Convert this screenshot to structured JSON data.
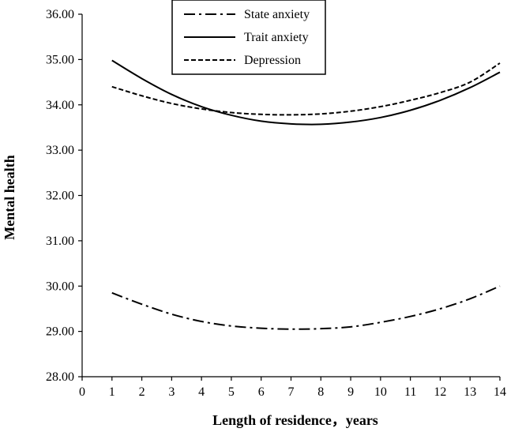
{
  "chart_data": {
    "type": "line",
    "title": "",
    "xlabel": "Length of residence，years",
    "ylabel": "Mental  health",
    "xlim": [
      0,
      14
    ],
    "ylim": [
      28,
      36
    ],
    "x_ticks": [
      "0",
      "1",
      "2",
      "3",
      "4",
      "5",
      "6",
      "7",
      "8",
      "9",
      "10",
      "11",
      "12",
      "13",
      "14"
    ],
    "y_ticks": [
      "28.00",
      "29.00",
      "30.00",
      "31.00",
      "32.00",
      "33.00",
      "34.00",
      "35.00",
      "36.00"
    ],
    "grid": false,
    "legend_position": "top-center",
    "x": [
      1,
      2,
      3,
      4,
      5,
      6,
      7,
      8,
      9,
      10,
      11,
      12,
      13,
      14
    ],
    "series": [
      {
        "name": "State anxiety",
        "style": "dash-dot",
        "color": "#000000",
        "values": [
          29.85,
          29.6,
          29.38,
          29.22,
          29.12,
          29.07,
          29.05,
          29.06,
          29.1,
          29.2,
          29.33,
          29.5,
          29.72,
          30.0
        ]
      },
      {
        "name": "Trait anxiety",
        "style": "solid",
        "color": "#000000",
        "values": [
          34.98,
          34.58,
          34.23,
          33.96,
          33.77,
          33.64,
          33.58,
          33.57,
          33.62,
          33.72,
          33.88,
          34.1,
          34.38,
          34.72
        ]
      },
      {
        "name": "Depression",
        "style": "dashed",
        "color": "#000000",
        "values": [
          34.4,
          34.2,
          34.03,
          33.91,
          33.83,
          33.79,
          33.78,
          33.8,
          33.86,
          33.96,
          34.1,
          34.27,
          34.5,
          34.92
        ]
      }
    ]
  }
}
